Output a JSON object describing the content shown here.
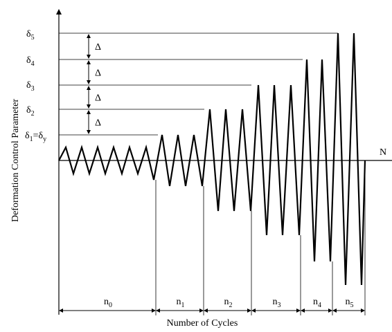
{
  "diagram": {
    "axes": {
      "y_label": "Deformation Control Parameter",
      "x_label": "Number of Cycles",
      "x_end_label": "N"
    },
    "amplitude_levels": [
      {
        "label": "δ",
        "sub": "1",
        "suffix": "=δ",
        "suffix_sub": "y"
      },
      {
        "label": "δ",
        "sub": "2"
      },
      {
        "label": "δ",
        "sub": "3"
      },
      {
        "label": "δ",
        "sub": "4"
      },
      {
        "label": "δ",
        "sub": "5"
      }
    ],
    "increment_label": "Δ",
    "cycle_groups": [
      {
        "label": "n",
        "sub": "0"
      },
      {
        "label": "n",
        "sub": "1"
      },
      {
        "label": "n",
        "sub": "2"
      },
      {
        "label": "n",
        "sub": "3"
      },
      {
        "label": "n",
        "sub": "4"
      },
      {
        "label": "n",
        "sub": "5"
      }
    ]
  }
}
